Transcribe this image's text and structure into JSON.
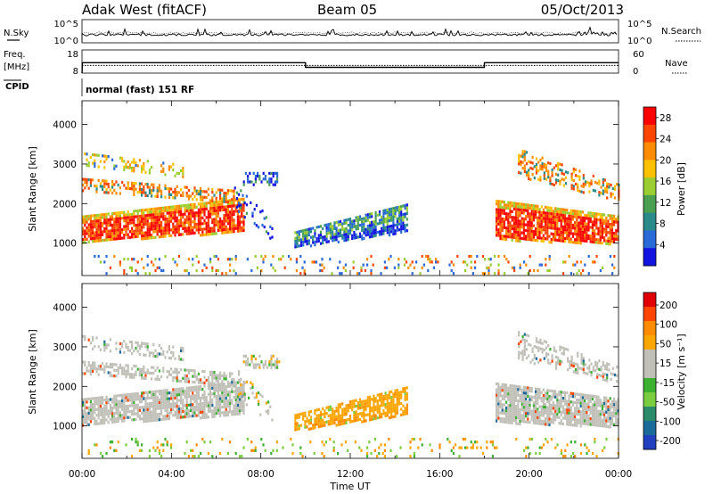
{
  "header": {
    "station": "Adak West (fitACF)",
    "beam": "Beam 05",
    "date": "05/Oct/2013"
  },
  "panels": {
    "nsky_label": "N.Sky",
    "nsearch_label": "N.Search",
    "freq_label": "Freq.",
    "freq_unit": "[MHz]",
    "nave_label": "Nave",
    "cpid_label": "CPID",
    "cpid_value": "normal (fast) 151 RF",
    "noise_left_ticks": [
      "10^5",
      "10^0"
    ],
    "noise_right_ticks": [
      "10^5",
      "10^0"
    ],
    "freq_left_ticks": [
      "18",
      "8"
    ],
    "freq_right_ticks": [
      "60",
      "0"
    ]
  },
  "colors": {
    "power": [
      "#1414e0",
      "#2a6ad8",
      "#2a8a8a",
      "#4aa050",
      "#9acd32",
      "#ffc000",
      "#ff8c00",
      "#ff4500",
      "#ff0000"
    ],
    "velocity": [
      "#e00000",
      "#ff4500",
      "#ff8c00",
      "#ffa500",
      "#c0c0b8",
      "#c0c0b8",
      "#3cb030",
      "#7acc40",
      "#2a8a6a",
      "#1a6a9a",
      "#2040c0"
    ],
    "ground_scatter": "#c0c0b8"
  },
  "chart_data": [
    {
      "type": "heatmap",
      "title": "",
      "xlabel": "Time UT",
      "ylabel": "Slant Range [km]",
      "xlim": [
        "00:00",
        "24:00"
      ],
      "ylim": [
        180,
        4600
      ],
      "x_tick_labels": [
        "00:00",
        "04:00",
        "08:00",
        "12:00",
        "16:00",
        "20:00",
        "00:00"
      ],
      "y_tick_labels": [
        "1000",
        "2000",
        "3000",
        "4000"
      ],
      "colorbar": {
        "label": "Power [dB]",
        "ticks": [
          "4",
          "8",
          "12",
          "16",
          "20",
          "24",
          "28"
        ],
        "range": [
          0,
          30
        ]
      }
    },
    {
      "type": "heatmap",
      "title": "",
      "xlabel": "Time UT",
      "ylabel": "Slant Range [km]",
      "xlim": [
        "00:00",
        "24:00"
      ],
      "ylim": [
        180,
        4600
      ],
      "x_tick_labels": [
        "00:00",
        "04:00",
        "08:00",
        "12:00",
        "16:00",
        "20:00",
        "00:00"
      ],
      "y_tick_labels": [
        "1000",
        "2000",
        "3000",
        "4000"
      ],
      "colorbar": {
        "label": "Velocity [m s⁻¹]",
        "ticks": [
          "200",
          "100",
          "50",
          "15",
          "-15",
          "-50",
          "-100",
          "-200"
        ]
      }
    },
    {
      "type": "line",
      "title": "",
      "series": [
        {
          "name": "Freq.",
          "x_hours": [
            0,
            0.02,
            10,
            10,
            18,
            18,
            24
          ],
          "y_mhz": [
            8,
            12.5,
            12.5,
            10.5,
            10.5,
            12.5,
            12.5
          ]
        },
        {
          "name": "Nave",
          "x_hours": [
            0,
            24
          ],
          "y": [
            20,
            20
          ]
        }
      ]
    }
  ]
}
